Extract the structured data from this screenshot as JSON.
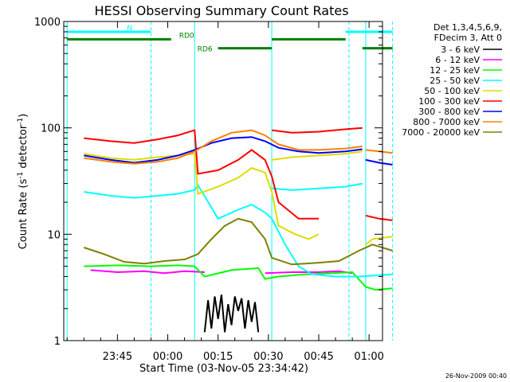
{
  "chart_data": {
    "type": "line",
    "title": "HESSI Observing Summary Count Rates",
    "xlabel": "Start Time (03-Nov-05 23:34:42)",
    "ylabel_parts": [
      "Count Rate (s",
      "-1",
      " detector",
      "-1",
      ")"
    ],
    "yscale": "log",
    "ylim": [
      1,
      1000
    ],
    "x_range_min": [
      -6,
      89
    ],
    "x_ticks": [
      {
        "min": 10,
        "label": "23:45"
      },
      {
        "min": 25,
        "label": "00:00"
      },
      {
        "min": 40,
        "label": "00:15"
      },
      {
        "min": 55,
        "label": "00:30"
      },
      {
        "min": 70,
        "label": "00:45"
      },
      {
        "min": 85,
        "label": "01:00"
      }
    ],
    "y_ticks": [
      {
        "value": 1,
        "label": "1"
      },
      {
        "value": 10,
        "label": "10"
      },
      {
        "value": 100,
        "label": "100"
      },
      {
        "value": 1000,
        "label": "1000"
      }
    ],
    "legend_header": [
      "Det 1,3,4,5,6,9,",
      "FDecim 3, Att 0"
    ],
    "series": [
      {
        "name": "3 - 6 keV",
        "color": "#000000",
        "segments": [
          [
            [
              36,
              1.2
            ],
            [
              37,
              2.4
            ],
            [
              38,
              1.3
            ],
            [
              39,
              2.6
            ],
            [
              40,
              1.6
            ],
            [
              41,
              2.7
            ],
            [
              42,
              1.2
            ],
            [
              43,
              2.2
            ],
            [
              44,
              1.4
            ],
            [
              45,
              2.6
            ],
            [
              46,
              1.9
            ],
            [
              47,
              2.5
            ],
            [
              48,
              1.3
            ],
            [
              49,
              2.4
            ],
            [
              50,
              1.5
            ],
            [
              51,
              2.3
            ],
            [
              52,
              1.2
            ]
          ]
        ]
      },
      {
        "name": "6 - 12 keV",
        "color": "#ff00ff",
        "segments": [
          [
            [
              2,
              4.6
            ],
            [
              10,
              4.4
            ],
            [
              18,
              4.5
            ],
            [
              24,
              4.3
            ],
            [
              30,
              4.5
            ],
            [
              36,
              4.4
            ]
          ],
          [
            [
              54,
              4.3
            ],
            [
              62,
              4.4
            ],
            [
              70,
              4.4
            ],
            [
              76,
              4.5
            ],
            [
              80,
              4.3
            ]
          ]
        ]
      },
      {
        "name": "12 - 25 keV",
        "color": "#00ff00",
        "segments": [
          [
            [
              0,
              5.0
            ],
            [
              10,
              5.1
            ],
            [
              20,
              5.0
            ],
            [
              28,
              5.1
            ],
            [
              33,
              5.0
            ],
            [
              36,
              4.0
            ],
            [
              44,
              4.6
            ],
            [
              52,
              4.8
            ],
            [
              54,
              3.8
            ],
            [
              58,
              4.0
            ],
            [
              66,
              4.2
            ],
            [
              74,
              4.3
            ],
            [
              80,
              4.4
            ],
            [
              84,
              3.2
            ],
            [
              87,
              3.0
            ],
            [
              92,
              3.1
            ]
          ]
        ]
      },
      {
        "name": "25 - 50 keV",
        "color": "#00ffff",
        "segments": [
          [
            [
              0,
              25
            ],
            [
              8,
              23
            ],
            [
              15,
              22
            ],
            [
              22,
              23
            ],
            [
              28,
              24
            ],
            [
              33,
              26
            ],
            [
              34,
              29
            ],
            [
              40,
              14
            ],
            [
              46,
              17
            ],
            [
              50,
              19
            ],
            [
              54,
              16
            ],
            [
              56,
              14
            ],
            [
              60,
              8
            ],
            [
              64,
              5
            ],
            [
              68,
              4.2
            ],
            [
              75,
              4.0
            ],
            [
              82,
              4.0
            ],
            [
              92,
              4.2
            ]
          ],
          [
            [
              56,
              27
            ],
            [
              62,
              26
            ],
            [
              70,
              27
            ],
            [
              78,
              28
            ],
            [
              83,
              30
            ]
          ]
        ]
      },
      {
        "name": "50 - 100 keV",
        "color": "#dddd00",
        "segments": [
          [
            [
              0,
              57
            ],
            [
              8,
              52
            ],
            [
              15,
              50
            ],
            [
              22,
              53
            ],
            [
              28,
              55
            ],
            [
              33,
              57
            ],
            [
              34,
              24
            ],
            [
              40,
              28
            ],
            [
              46,
              34
            ],
            [
              50,
              42
            ],
            [
              54,
              38
            ],
            [
              56,
              25
            ],
            [
              58,
              12
            ],
            [
              63,
              10
            ],
            [
              67,
              9
            ],
            [
              70,
              10
            ]
          ],
          [
            [
              56,
              50
            ],
            [
              62,
              53
            ],
            [
              70,
              55
            ],
            [
              78,
              57
            ],
            [
              83,
              60
            ]
          ],
          [
            [
              84,
              8
            ],
            [
              86,
              9
            ],
            [
              92,
              9.5
            ]
          ]
        ]
      },
      {
        "name": "100 - 300 keV",
        "color": "#ff0000",
        "segments": [
          [
            [
              0,
              80
            ],
            [
              8,
              75
            ],
            [
              15,
              72
            ],
            [
              22,
              78
            ],
            [
              28,
              85
            ],
            [
              33,
              95
            ],
            [
              34,
              37
            ],
            [
              40,
              40
            ],
            [
              46,
              50
            ],
            [
              50,
              62
            ],
            [
              54,
              50
            ],
            [
              56,
              35
            ],
            [
              58,
              20
            ],
            [
              64,
              14
            ],
            [
              70,
              14
            ]
          ],
          [
            [
              56,
              95
            ],
            [
              62,
              90
            ],
            [
              70,
              92
            ],
            [
              78,
              97
            ],
            [
              83,
              100
            ]
          ],
          [
            [
              84,
              15
            ],
            [
              88,
              14
            ],
            [
              92,
              13.5
            ]
          ]
        ]
      },
      {
        "name": "300 - 800 keV",
        "color": "#0000ff",
        "segments": [
          [
            [
              0,
              55
            ],
            [
              8,
              50
            ],
            [
              15,
              47
            ],
            [
              22,
              50
            ],
            [
              28,
              55
            ],
            [
              33,
              62
            ],
            [
              38,
              72
            ],
            [
              44,
              80
            ],
            [
              50,
              82
            ],
            [
              54,
              75
            ],
            [
              58,
              65
            ],
            [
              64,
              60
            ],
            [
              70,
              58
            ],
            [
              78,
              60
            ],
            [
              83,
              63
            ]
          ],
          [
            [
              84,
              50
            ],
            [
              88,
              47
            ],
            [
              92,
              45
            ]
          ]
        ]
      },
      {
        "name": "800 - 7000 keV",
        "color": "#ff8000",
        "segments": [
          [
            [
              0,
              52
            ],
            [
              8,
              48
            ],
            [
              15,
              46
            ],
            [
              22,
              48
            ],
            [
              28,
              52
            ],
            [
              33,
              60
            ],
            [
              38,
              75
            ],
            [
              44,
              90
            ],
            [
              50,
              95
            ],
            [
              54,
              85
            ],
            [
              58,
              70
            ],
            [
              64,
              62
            ],
            [
              70,
              62
            ],
            [
              78,
              64
            ],
            [
              83,
              67
            ]
          ],
          [
            [
              84,
              62
            ],
            [
              88,
              60
            ],
            [
              92,
              58
            ]
          ]
        ]
      },
      {
        "name": "7000 - 20000 keV",
        "color": "#808000",
        "segments": [
          [
            [
              0,
              7.5
            ],
            [
              6,
              6.5
            ],
            [
              12,
              5.5
            ],
            [
              18,
              5.3
            ],
            [
              24,
              5.6
            ],
            [
              30,
              5.8
            ],
            [
              34,
              6.5
            ],
            [
              38,
              9
            ],
            [
              42,
              12
            ],
            [
              46,
              14
            ],
            [
              50,
              13
            ],
            [
              54,
              9
            ],
            [
              56,
              6
            ],
            [
              62,
              5.2
            ],
            [
              70,
              5.4
            ],
            [
              76,
              5.6
            ],
            [
              82,
              7
            ],
            [
              86,
              8
            ],
            [
              92,
              7
            ]
          ]
        ]
      }
    ],
    "state_bars": [
      {
        "label": "N",
        "color": "#00ffff",
        "y_value": 800,
        "segments": [
          [
            -5,
            20
          ],
          [
            78,
            92
          ]
        ]
      },
      {
        "label": "RD0",
        "color": "#008000",
        "y_value": 680,
        "segments": [
          [
            -5,
            26
          ],
          [
            56,
            78
          ]
        ]
      },
      {
        "label": "RD6",
        "color": "#008000",
        "y_value": 560,
        "segments": [
          [
            40,
            56
          ],
          [
            83,
            92
          ]
        ]
      }
    ],
    "vlines_min": [
      20,
      79,
      92
    ],
    "vlines_solid_min": [
      -5,
      33,
      56,
      84
    ]
  },
  "footer_timestamp": "26-Nov-2009 00:40"
}
